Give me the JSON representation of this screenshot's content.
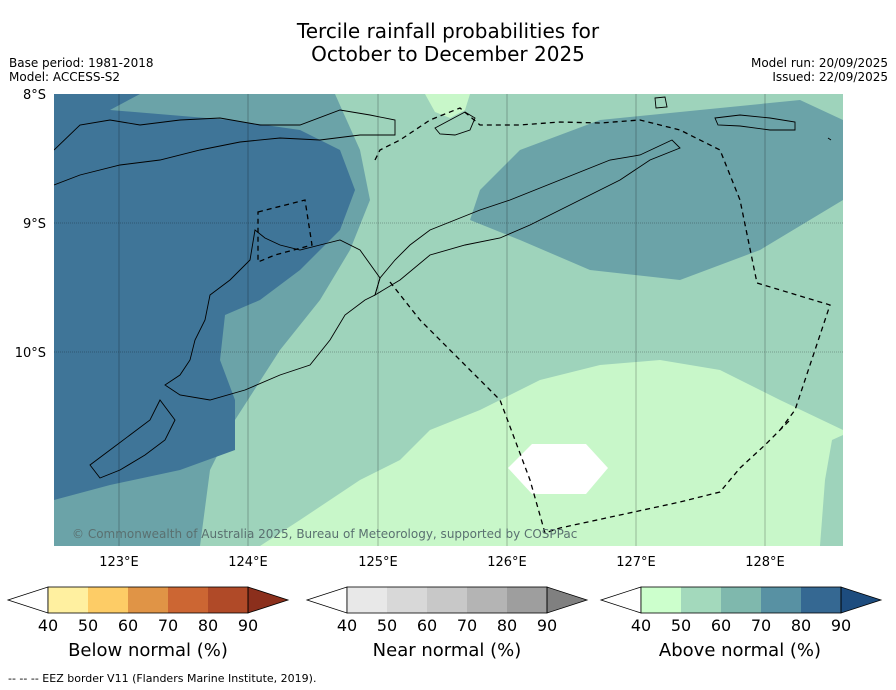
{
  "title_line1": "Tercile rainfall probabilities for",
  "title_line2": "October to December 2025",
  "meta_left": [
    "Base period: 1981-2018",
    "Model: ACCESS-S2"
  ],
  "meta_right": [
    "Model run: 20/09/2025",
    "Issued: 22/09/2025"
  ],
  "copyright": "© Commonwealth of Australia 2025, Bureau of Meteorology, supported by COSPPac",
  "lat_labels": [
    "8°S",
    "9°S",
    "10°S"
  ],
  "lon_labels": [
    "123°E",
    "124°E",
    "125°E",
    "126°E",
    "127°E",
    "128°E"
  ],
  "colorbars": [
    {
      "label": "Below normal (%)",
      "ticks": [
        "40",
        "50",
        "60",
        "70",
        "80",
        "90"
      ],
      "colors": [
        "#ffffff",
        "#fff0a0",
        "#fdcc66",
        "#e09446",
        "#cc6633",
        "#b04a28",
        "#8b2f1c"
      ]
    },
    {
      "label": "Near normal (%)",
      "ticks": [
        "40",
        "50",
        "60",
        "70",
        "80",
        "90"
      ],
      "colors": [
        "#ffffff",
        "#e8e8e8",
        "#d8d8d8",
        "#c8c8c8",
        "#b4b4b4",
        "#9e9e9e",
        "#808080"
      ]
    },
    {
      "label": "Above normal (%)",
      "ticks": [
        "40",
        "50",
        "60",
        "70",
        "80",
        "90"
      ],
      "colors": [
        "#ffffff",
        "#ccffcc",
        "#a3d9bc",
        "#7fb8ad",
        "#5891a3",
        "#356892",
        "#1d4c7e"
      ]
    }
  ],
  "colors": {
    "above_40_50": "#c8f7c9",
    "above_50_60": "#9ed3bb",
    "above_60_70": "#6ba3a8",
    "above_70_80": "#3f7598",
    "neutral_white": "#ffffff"
  },
  "footnote": "--  --  -- EEZ border V11 (Flanders Marine Institute, 2019)."
}
